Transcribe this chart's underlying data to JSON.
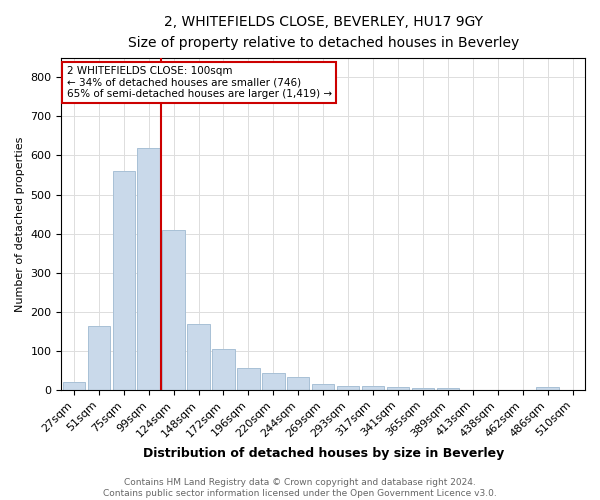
{
  "title1": "2, WHITEFIELDS CLOSE, BEVERLEY, HU17 9GY",
  "title2": "Size of property relative to detached houses in Beverley",
  "xlabel": "Distribution of detached houses by size in Beverley",
  "ylabel": "Number of detached properties",
  "footnote": "Contains HM Land Registry data © Crown copyright and database right 2024.\nContains public sector information licensed under the Open Government Licence v3.0.",
  "categories": [
    "27sqm",
    "51sqm",
    "75sqm",
    "99sqm",
    "124sqm",
    "148sqm",
    "172sqm",
    "196sqm",
    "220sqm",
    "244sqm",
    "269sqm",
    "293sqm",
    "317sqm",
    "341sqm",
    "365sqm",
    "389sqm",
    "413sqm",
    "438sqm",
    "462sqm",
    "486sqm",
    "510sqm"
  ],
  "values": [
    20,
    163,
    560,
    620,
    410,
    170,
    105,
    55,
    43,
    32,
    15,
    11,
    10,
    8,
    6,
    5,
    0,
    0,
    0,
    7,
    0
  ],
  "bar_color": "#c9d9ea",
  "bar_edgecolor": "#a8c0d6",
  "vline_x": 3.5,
  "vline_color": "#cc0000",
  "annotation_text": "2 WHITEFIELDS CLOSE: 100sqm\n← 34% of detached houses are smaller (746)\n65% of semi-detached houses are larger (1,419) →",
  "annotation_box_edgecolor": "#cc0000",
  "ylim": [
    0,
    850
  ],
  "yticks": [
    0,
    100,
    200,
    300,
    400,
    500,
    600,
    700,
    800
  ],
  "background_color": "#ffffff",
  "grid_color": "#dddddd",
  "title1_fontsize": 10,
  "title2_fontsize": 9,
  "ylabel_fontsize": 8,
  "xlabel_fontsize": 9,
  "tick_fontsize": 8,
  "footnote_fontsize": 6.5
}
